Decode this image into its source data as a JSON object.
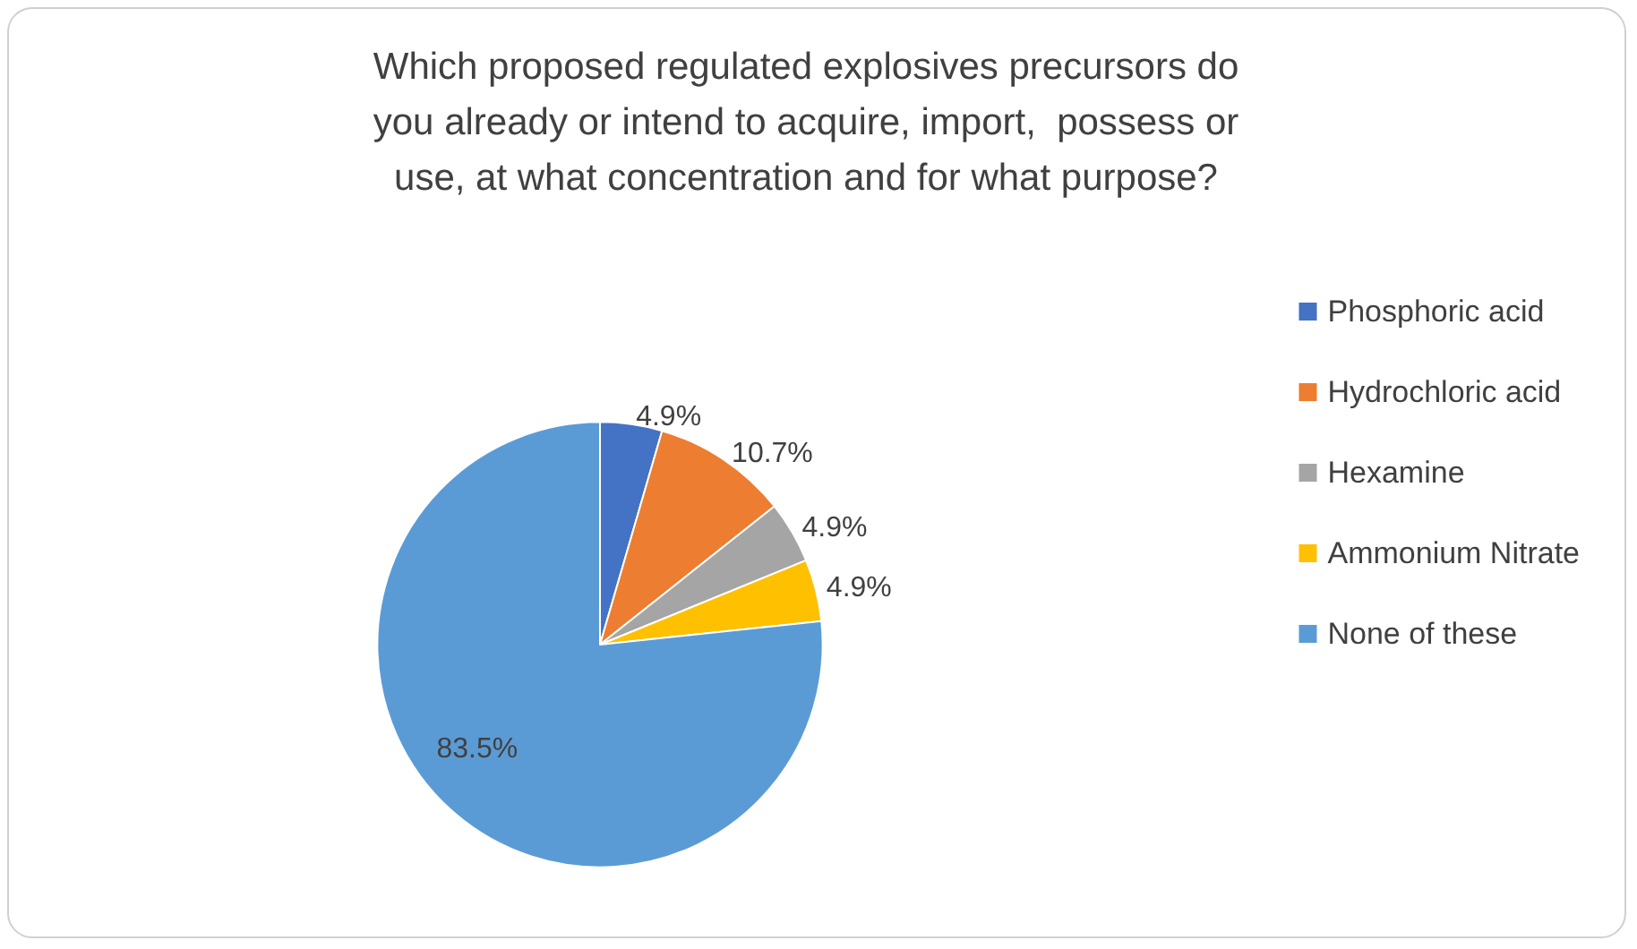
{
  "chart_data": {
    "type": "pie",
    "title": "Which proposed regulated explosives precursors do\nyou already or intend to acquire, import,  possess or\nuse, at what concentration and for what purpose?",
    "categories": [
      "Phosphoric acid",
      "Hydrochloric acid",
      "Hexamine",
      "Ammonium Nitrate",
      "None of these"
    ],
    "values": [
      4.9,
      10.7,
      4.9,
      4.9,
      83.5
    ],
    "value_labels": [
      "4.9%",
      "10.7%",
      "4.9%",
      "4.9%",
      "83.5%"
    ],
    "colors": [
      "#4472c4",
      "#ed7d31",
      "#a5a5a5",
      "#ffc000",
      "#5b9bd5"
    ],
    "legend": "right"
  }
}
